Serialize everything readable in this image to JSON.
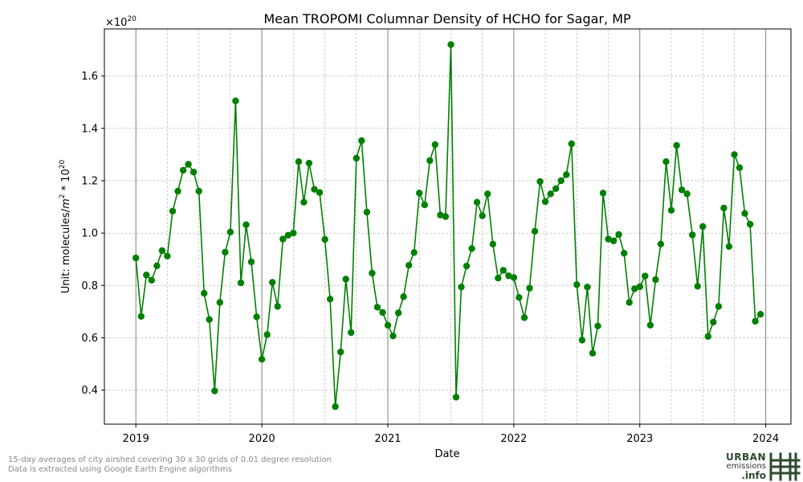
{
  "chart_data": {
    "type": "line",
    "title": "Mean TROPOMI Columnar Density of HCHO for Sagar, MP",
    "xlabel": "Date",
    "ylabel": "Unit: molecules/m² * 10²⁰",
    "ylabel_base": "Unit: molecules/",
    "ylabel_m": "m",
    "ylabel_m_exp": "2",
    "ylabel_times": " * 10",
    "ylabel_exp": "20",
    "offset_base": "×10",
    "offset_exp": "20",
    "line_color": "#008000",
    "xlim": [
      2018.75,
      2024.2
    ],
    "ylim": [
      0.27,
      1.78
    ],
    "x_ticks": [
      2019,
      2020,
      2021,
      2022,
      2023,
      2024
    ],
    "x_tick_labels": [
      "2019",
      "2020",
      "2021",
      "2022",
      "2023",
      "2024"
    ],
    "y_ticks": [
      0.4,
      0.6,
      0.8,
      1.0,
      1.2,
      1.4,
      1.6
    ],
    "y_tick_labels": [
      "0.4",
      "0.6",
      "0.8",
      "1.0",
      "1.2",
      "1.4",
      "1.6"
    ],
    "grid": true,
    "series": [
      {
        "name": "HCHO",
        "x0": 2019.0,
        "step": 0.04167,
        "values": [
          0.905,
          0.682,
          0.84,
          0.82,
          0.875,
          0.933,
          0.912,
          1.084,
          1.16,
          1.24,
          1.263,
          1.233,
          1.16,
          0.77,
          0.67,
          0.397,
          0.735,
          0.927,
          1.004,
          1.505,
          0.81,
          1.032,
          0.89,
          0.68,
          0.518,
          0.612,
          0.812,
          0.72,
          0.977,
          0.992,
          1.0,
          1.273,
          1.118,
          1.267,
          1.167,
          1.155,
          0.976,
          0.748,
          0.337,
          0.546,
          0.824,
          0.62,
          1.286,
          1.353,
          1.08,
          0.847,
          0.717,
          0.697,
          0.648,
          0.607,
          0.695,
          0.757,
          0.877,
          0.926,
          1.153,
          1.108,
          1.277,
          1.338,
          1.069,
          1.063,
          1.72,
          0.373,
          0.794,
          0.874,
          0.941,
          1.118,
          1.066,
          1.15,
          0.958,
          0.828,
          0.858,
          0.837,
          0.83,
          0.754,
          0.677,
          0.79,
          1.007,
          1.197,
          1.12,
          1.15,
          1.17,
          1.2,
          1.223,
          1.341,
          0.803,
          0.591,
          0.794,
          0.541,
          0.645,
          1.153,
          0.977,
          0.97,
          0.995,
          0.923,
          0.735,
          0.787,
          0.795,
          0.836,
          0.648,
          0.822,
          0.958,
          1.273,
          1.087,
          1.335,
          1.165,
          1.15,
          0.993,
          0.797,
          1.025,
          0.605,
          0.66,
          0.72,
          1.096,
          0.949,
          1.3,
          1.25,
          1.075,
          1.034,
          0.663,
          0.69
        ]
      }
    ]
  },
  "footnotes": {
    "line1": "15-day averages of city airshed covering 30 x 30 grids of 0.01 degree resolution",
    "line2": "Data is extracted using Google Earth Engine algorithms"
  },
  "logo": {
    "line1": "URBAN",
    "line2": "emissions",
    "line3": ".info",
    "color": "#2e4a2e"
  }
}
